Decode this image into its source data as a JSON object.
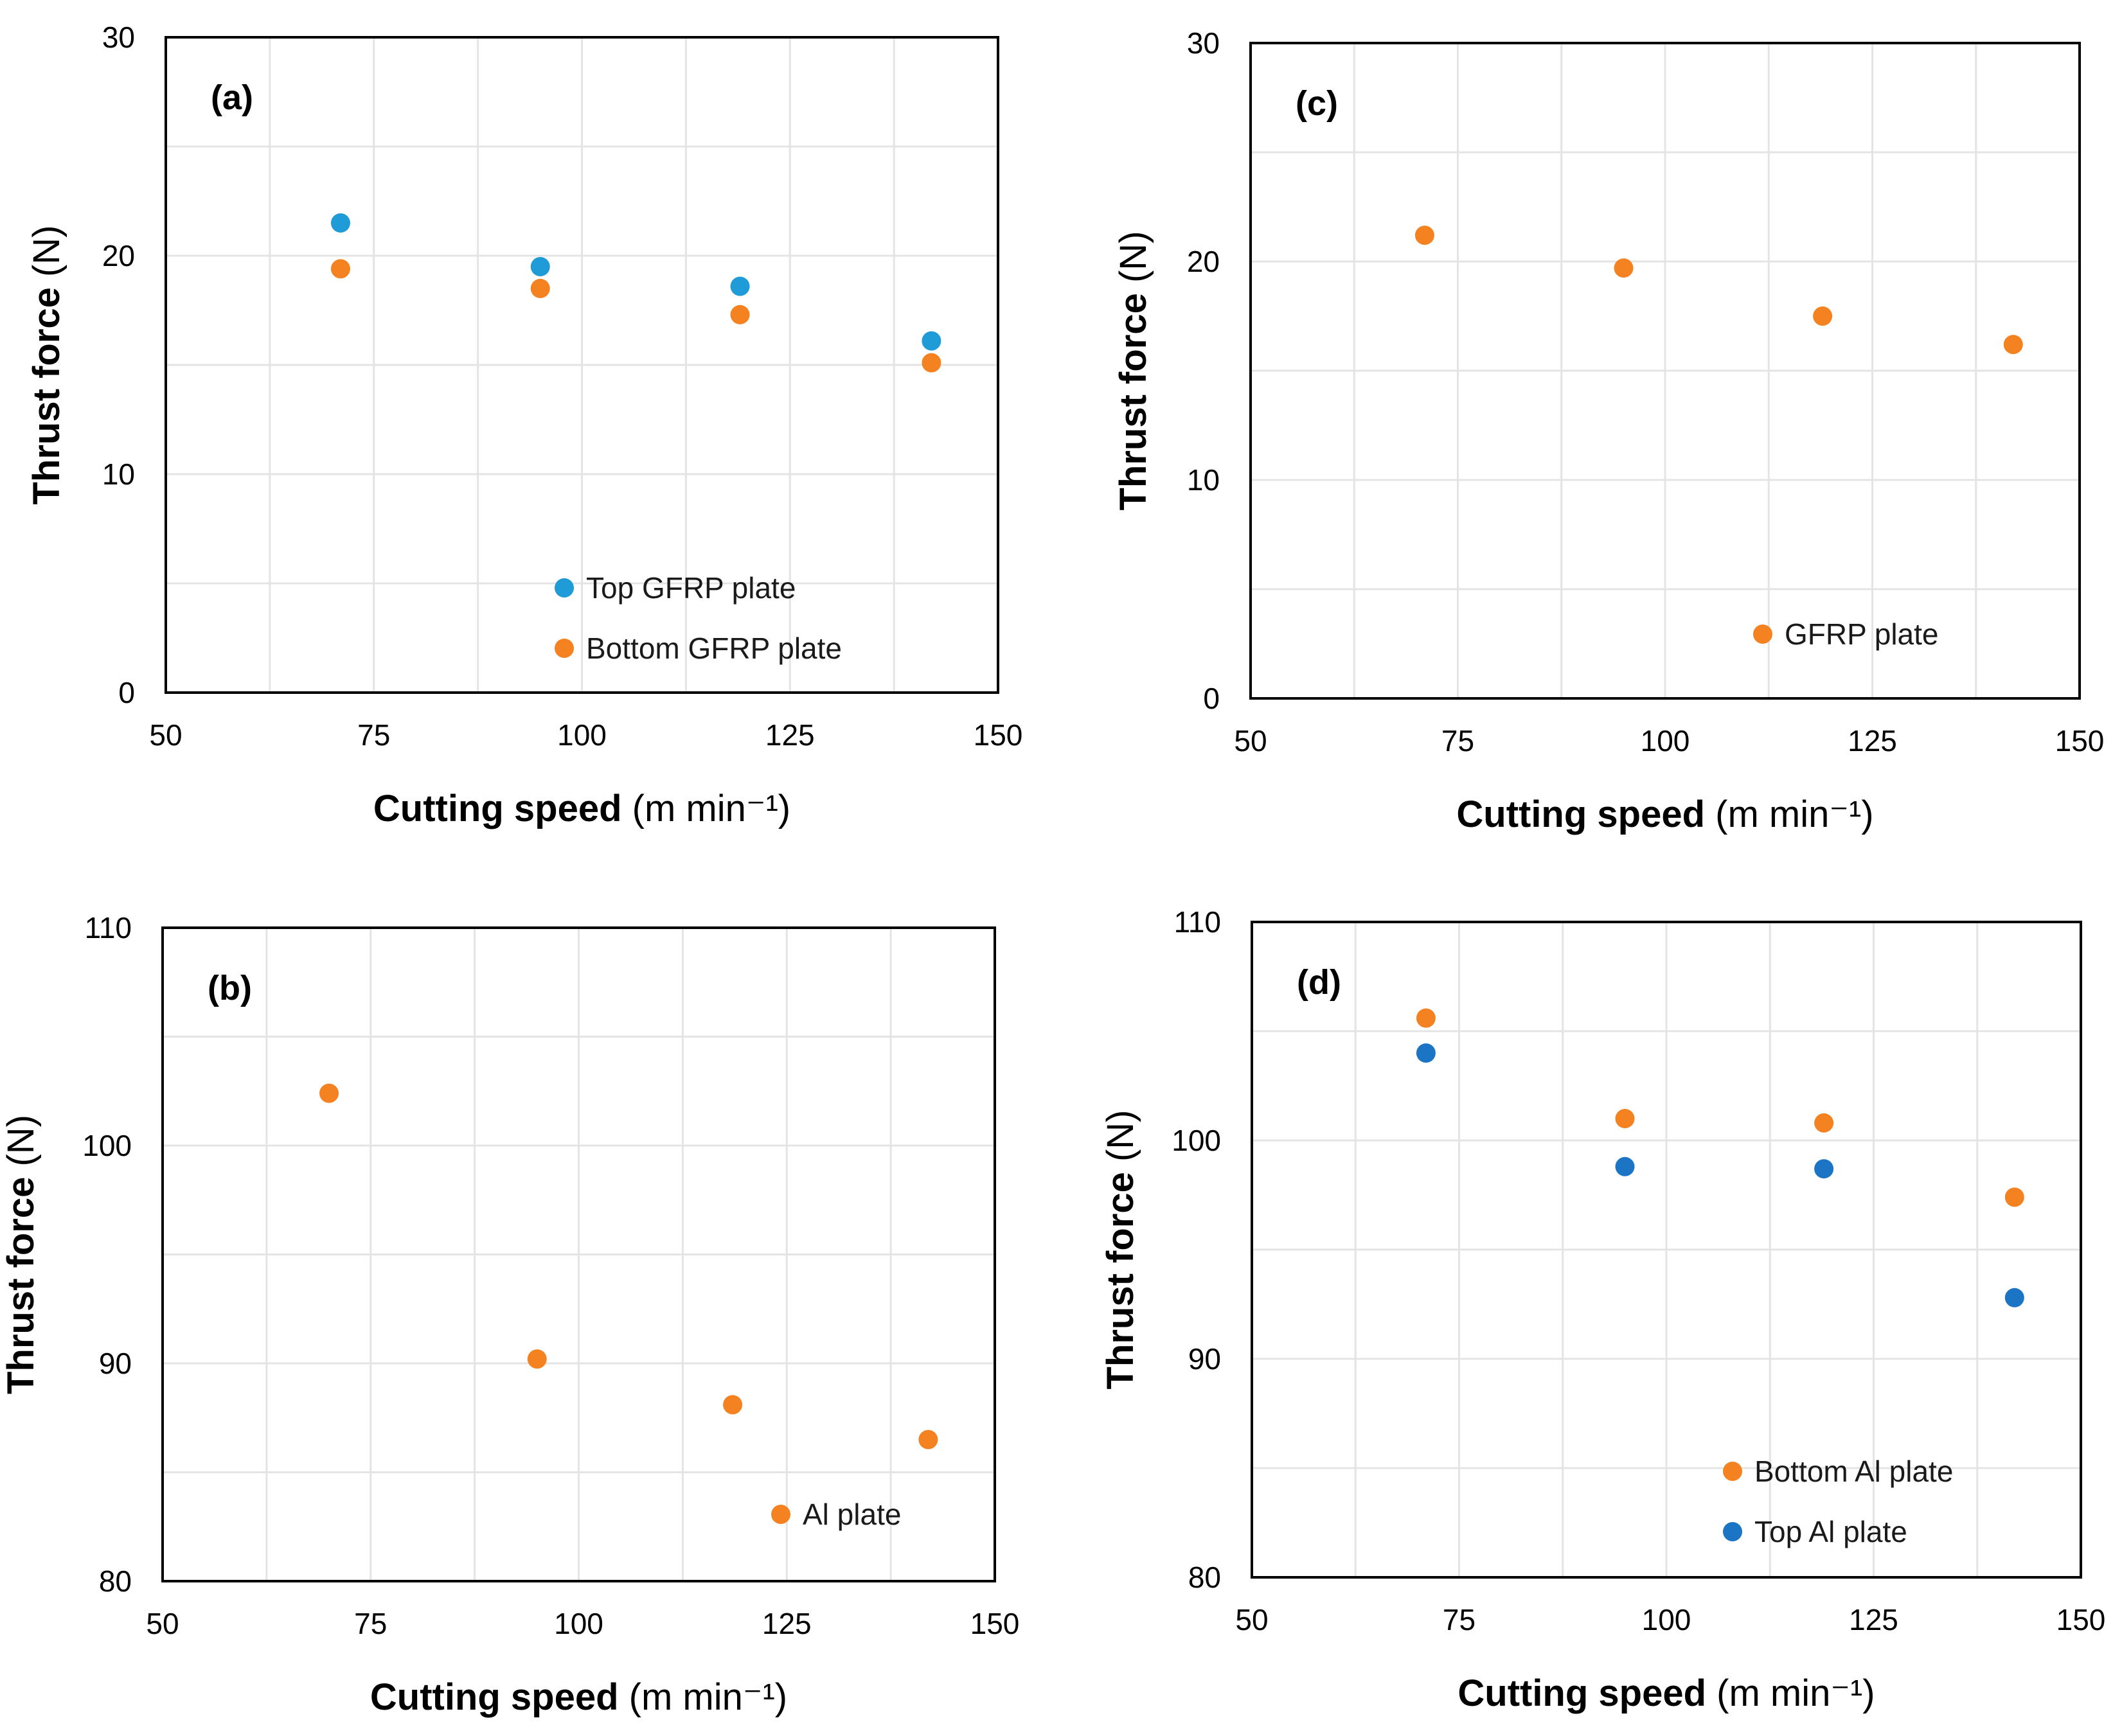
{
  "chart_data": [
    {
      "id": "a",
      "type": "scatter",
      "panel_label": "(a)",
      "xlabel": "Cutting speed",
      "xlabel_unit": "(m min⁻¹)",
      "ylabel": "Thrust force",
      "ylabel_unit": "(N)",
      "xlim": [
        50,
        150
      ],
      "ylim": [
        0,
        30
      ],
      "xticks": [
        50,
        75,
        100,
        125,
        150
      ],
      "yticks": [
        0,
        10,
        20,
        30
      ],
      "grid": true,
      "legend_position": "bottom-center",
      "series": [
        {
          "name": "Top GFRP plate",
          "color": "#1f9bd7",
          "x": [
            71,
            95,
            119,
            142
          ],
          "y": [
            21.5,
            19.5,
            18.6,
            16.1
          ]
        },
        {
          "name": "Bottom GFRP plate",
          "color": "#f58220",
          "x": [
            71,
            95,
            119,
            142
          ],
          "y": [
            19.4,
            18.5,
            17.3,
            15.1
          ]
        }
      ]
    },
    {
      "id": "c",
      "type": "scatter",
      "panel_label": "(c)",
      "xlabel": "Cutting speed",
      "xlabel_unit": "(m min⁻¹)",
      "ylabel": "Thrust force",
      "ylabel_unit": "(N)",
      "xlim": [
        50,
        150
      ],
      "ylim": [
        0,
        30
      ],
      "xticks": [
        50,
        75,
        100,
        125,
        150
      ],
      "yticks": [
        0,
        10,
        20,
        30
      ],
      "grid": true,
      "legend_position": "bottom-right",
      "series": [
        {
          "name": "GFRP plate",
          "color": "#f58220",
          "x": [
            71,
            95,
            119,
            142
          ],
          "y": [
            21.2,
            19.7,
            17.5,
            16.2
          ]
        }
      ]
    },
    {
      "id": "b",
      "type": "scatter",
      "panel_label": "(b)",
      "xlabel": "Cutting speed",
      "xlabel_unit": "(m min⁻¹)",
      "ylabel": "Thrust force",
      "ylabel_unit": "(N)",
      "xlim": [
        50,
        150
      ],
      "ylim": [
        80,
        110
      ],
      "xticks": [
        50,
        75,
        100,
        125,
        150
      ],
      "yticks": [
        80,
        90,
        100,
        110
      ],
      "grid": true,
      "legend_position": "bottom-right",
      "series": [
        {
          "name": "Al plate",
          "color": "#f58220",
          "x": [
            70,
            95,
            118.5,
            142
          ],
          "y": [
            102.4,
            90.2,
            88.1,
            86.5
          ]
        }
      ]
    },
    {
      "id": "d",
      "type": "scatter",
      "panel_label": "(d)",
      "xlabel": "Cutting speed",
      "xlabel_unit": "(m min⁻¹)",
      "ylabel": "Thrust force",
      "ylabel_unit": "(N)",
      "xlim": [
        50,
        150
      ],
      "ylim": [
        80,
        110
      ],
      "xticks": [
        50,
        75,
        100,
        125,
        150
      ],
      "yticks": [
        80,
        90,
        100,
        110
      ],
      "grid": true,
      "legend_position": "bottom-right",
      "series": [
        {
          "name": "Bottom Al plate",
          "color": "#f58220",
          "x": [
            71,
            95,
            119,
            142
          ],
          "y": [
            105.6,
            101.0,
            100.8,
            97.4
          ]
        },
        {
          "name": "Top Al plate",
          "color": "#1b75c4",
          "x": [
            71,
            95,
            119,
            142
          ],
          "y": [
            104.0,
            98.8,
            98.7,
            92.8
          ]
        }
      ]
    }
  ]
}
